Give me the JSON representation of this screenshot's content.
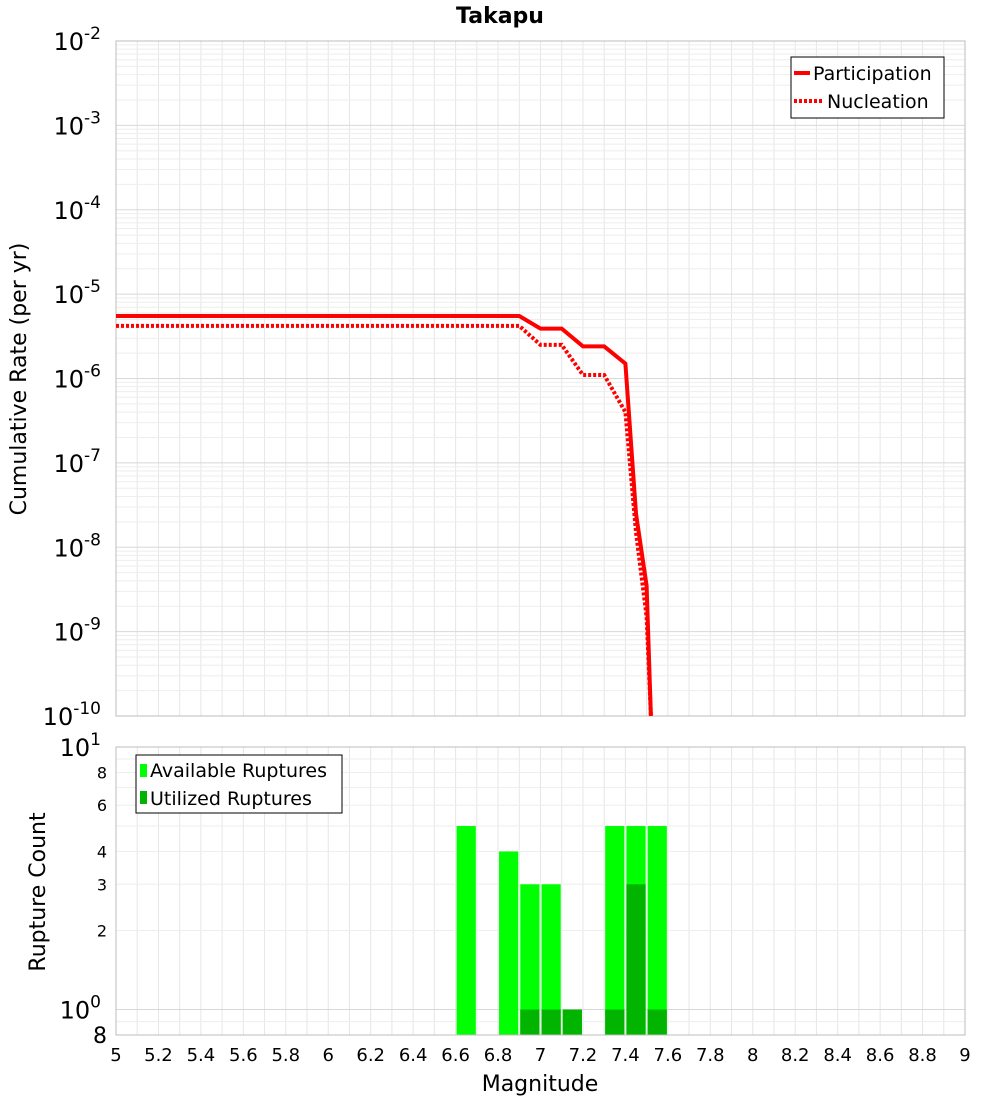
{
  "title": "Takapu",
  "colors": {
    "line": "#ff0000",
    "available": "#00ff00",
    "utilized": "#00b400",
    "grid": "#e6e6e6",
    "frame": "#bdbdbd"
  },
  "chart_data": [
    {
      "type": "line",
      "title": "Takapu",
      "ylabel": "Cumulative Rate (per yr)",
      "xlim": [
        5,
        9
      ],
      "ylim": [
        1e-10,
        0.01
      ],
      "yscale": "log",
      "grid": true,
      "legend_position": "top-right",
      "y_tick_labels": [
        {
          "base": "10",
          "exp": "-2"
        },
        {
          "base": "10",
          "exp": "-3"
        },
        {
          "base": "10",
          "exp": "-4"
        },
        {
          "base": "10",
          "exp": "-5"
        },
        {
          "base": "10",
          "exp": "-6"
        },
        {
          "base": "10",
          "exp": "-7"
        },
        {
          "base": "10",
          "exp": "-8"
        },
        {
          "base": "10",
          "exp": "-9"
        },
        {
          "base": "10",
          "exp": "-10"
        }
      ],
      "series": [
        {
          "name": "Participation",
          "style": "solid",
          "x": [
            5.0,
            6.9,
            7.0,
            7.1,
            7.2,
            7.3,
            7.4,
            7.45,
            7.5,
            7.52
          ],
          "y": [
            5.5e-06,
            5.5e-06,
            3.9e-06,
            3.9e-06,
            2.4e-06,
            2.4e-06,
            1.5e-06,
            2.5e-08,
            3.5e-09,
            1e-10
          ]
        },
        {
          "name": "Nucleation",
          "style": "dotted",
          "x": [
            5.0,
            6.9,
            7.0,
            7.1,
            7.2,
            7.3,
            7.4,
            7.45,
            7.5,
            7.52
          ],
          "y": [
            4.2e-06,
            4.2e-06,
            2.5e-06,
            2.5e-06,
            1.1e-06,
            1.1e-06,
            4e-07,
            1.5e-08,
            1.5e-09,
            1e-10
          ]
        }
      ]
    },
    {
      "type": "bar",
      "ylabel": "Rupture Count",
      "xlabel": "Magnitude",
      "xlim": [
        5,
        9
      ],
      "ylim": [
        0.8,
        10
      ],
      "yscale": "log",
      "grid": true,
      "legend_position": "top-left",
      "bar_width": 0.1,
      "x_ticks": [
        "5",
        "5.2",
        "5.4",
        "5.6",
        "5.8",
        "6",
        "6.2",
        "6.4",
        "6.6",
        "6.8",
        "7",
        "7.2",
        "7.4",
        "7.6",
        "7.8",
        "8",
        "8.2",
        "8.4",
        "8.6",
        "8.8",
        "9"
      ],
      "y_ticks_minor": [
        {
          "value": 8,
          "label": "8"
        },
        {
          "value": 6,
          "label": "6"
        },
        {
          "value": 4,
          "label": "4"
        },
        {
          "value": 3,
          "label": "3"
        },
        {
          "value": 2,
          "label": "2"
        }
      ],
      "y_ticks_major": [
        {
          "value": 10,
          "base": "10",
          "exp": "1"
        },
        {
          "value": 1,
          "base": "10",
          "exp": "0"
        }
      ],
      "y_bottom_label": "8",
      "centers": [
        6.65,
        6.85,
        6.95,
        7.05,
        7.15,
        7.35,
        7.45,
        7.55
      ],
      "series": [
        {
          "name": "Available Ruptures",
          "values": [
            5,
            4,
            3,
            3,
            1,
            5,
            5,
            5
          ]
        },
        {
          "name": "Utilized Ruptures",
          "values": [
            0,
            0,
            1,
            1,
            1,
            1,
            3,
            1
          ]
        }
      ]
    }
  ]
}
